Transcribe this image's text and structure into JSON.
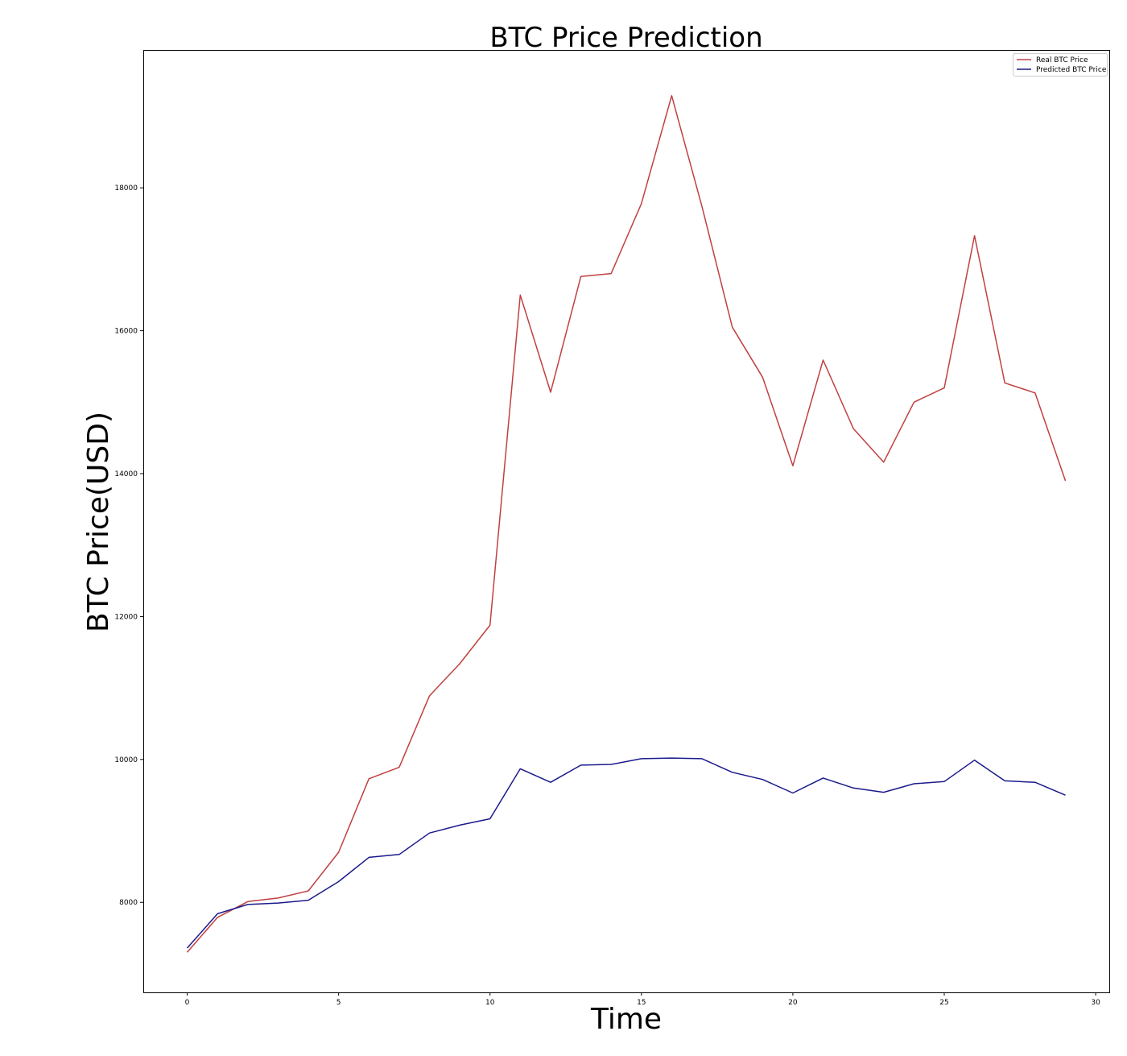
{
  "chart_data": {
    "type": "line",
    "title": "BTC Price Prediction",
    "xlabel": "Time",
    "ylabel": "BTC Price(USD)",
    "xlim": [
      -1.45,
      30.45
    ],
    "ylim": [
      6740,
      19930
    ],
    "xticks": [
      0,
      5,
      10,
      15,
      20,
      25,
      30
    ],
    "xtick_labels": [
      "0",
      "5",
      "10",
      "15",
      "20",
      "25",
      "30"
    ],
    "yticks": [
      8000,
      10000,
      12000,
      14000,
      16000,
      18000
    ],
    "ytick_labels": [
      "8000",
      "10000",
      "12000",
      "14000",
      "16000",
      "18000"
    ],
    "grid": false,
    "legend_position": "top-right",
    "x": [
      0,
      1,
      2,
      3,
      4,
      5,
      6,
      7,
      8,
      9,
      10,
      11,
      12,
      13,
      14,
      15,
      16,
      17,
      18,
      19,
      20,
      21,
      22,
      23,
      24,
      25,
      26,
      27,
      28,
      29
    ],
    "series": [
      {
        "name": "Real BTC Price",
        "color": "#c04040",
        "values": [
          7300,
          7790,
          8010,
          8060,
          8160,
          8700,
          9730,
          9890,
          10890,
          11340,
          11880,
          16500,
          15140,
          16760,
          16800,
          17780,
          19290,
          17740,
          16050,
          15350,
          14110,
          15590,
          14630,
          14160,
          15000,
          15200,
          17330,
          15270,
          15130,
          13900
        ]
      },
      {
        "name": "Predicted BTC Price",
        "color": "#1a1a8c",
        "values": [
          7360,
          7840,
          7970,
          7990,
          8030,
          8290,
          8630,
          8670,
          8970,
          9080,
          9170,
          9870,
          9680,
          9920,
          9930,
          10010,
          10020,
          10010,
          9820,
          9720,
          9530,
          9740,
          9600,
          9540,
          9660,
          9690,
          9990,
          9700,
          9680,
          9500
        ]
      }
    ]
  }
}
